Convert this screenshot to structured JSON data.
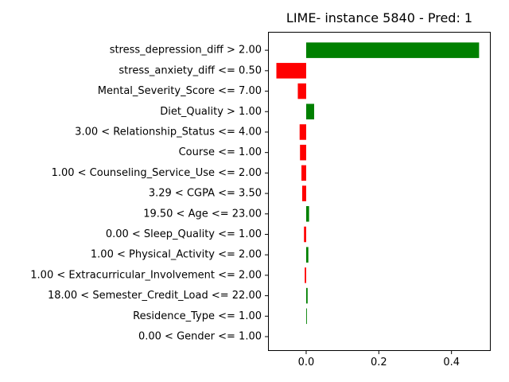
{
  "chart_data": {
    "type": "bar",
    "orientation": "horizontal",
    "title": "LIME- instance 5840 - Pred: 1",
    "xlabel": "",
    "ylabel": "",
    "xlim": [
      -0.105,
      0.508
    ],
    "xticks": [
      0.0,
      0.2,
      0.4
    ],
    "xtick_labels": [
      "0.0",
      "0.2",
      "0.4"
    ],
    "grid": false,
    "legend": "none",
    "colors": {
      "positive": "#008000",
      "negative": "#ff0000"
    },
    "categories": [
      "stress_depression_diff > 2.00",
      "stress_anxiety_diff <= 0.50",
      "Mental_Severity_Score <= 7.00",
      "Diet_Quality > 1.00",
      "3.00 < Relationship_Status <= 4.00",
      "Course <= 1.00",
      "1.00 < Counseling_Service_Use <= 2.00",
      "3.29 < CGPA <= 3.50",
      "19.50 < Age <= 23.00",
      "0.00 < Sleep_Quality <= 1.00",
      "1.00 < Physical_Activity <= 2.00",
      "1.00 < Extracurricular_Involvement <= 2.00",
      "18.00 < Semester_Credit_Load <= 22.00",
      "Residence_Type <= 1.00",
      "0.00 < Gender <= 1.00"
    ],
    "values": [
      0.476,
      -0.082,
      -0.023,
      0.022,
      -0.018,
      -0.017,
      -0.013,
      -0.011,
      0.008,
      -0.006,
      0.006,
      -0.004,
      0.004,
      0.002,
      0.0
    ]
  }
}
